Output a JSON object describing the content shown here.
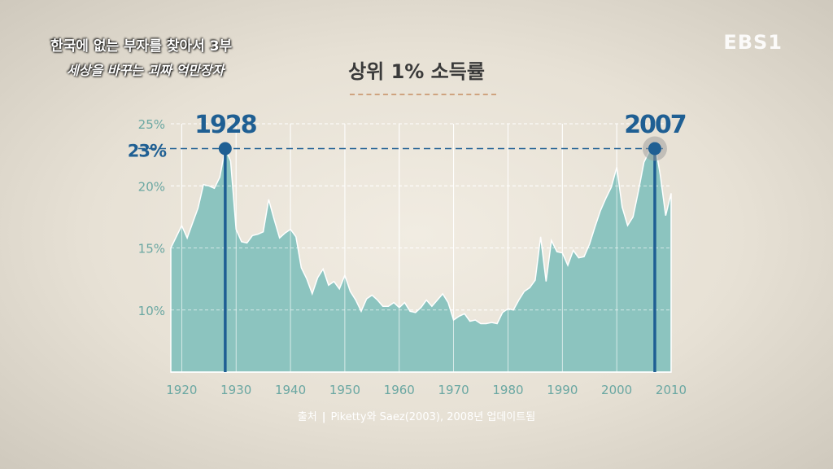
{
  "overlay": {
    "program_title": "한국에 없는 부자를 찾아서 3부",
    "episode_subtitle": "세상을 바꾸는 괴짜 억만장자",
    "channel_logo": "EBS1"
  },
  "chart_data": {
    "type": "area",
    "title": "상위 1% 소득률",
    "source_label": "출처",
    "source_text": "Piketty와 Saez(2003), 2008년 업데이트됨",
    "x_ticks": [
      1920,
      1930,
      1940,
      1950,
      1960,
      1970,
      1980,
      1990,
      2000,
      2010
    ],
    "y_ticks": [
      "10%",
      "15%",
      "20%",
      "25%"
    ],
    "y_tick_values": [
      10,
      15,
      20,
      25
    ],
    "xlim": [
      1918,
      2010
    ],
    "ylim": [
      5,
      25
    ],
    "grid": true,
    "fill_color": "#8cc4bf",
    "highlight_color": "#1f5f93",
    "reference_line": {
      "value": 23,
      "label": "23%"
    },
    "annotations": [
      {
        "x": 1928,
        "y": 23,
        "label": "1928"
      },
      {
        "x": 2007,
        "y": 23,
        "label": "2007"
      }
    ],
    "series": [
      {
        "x": [
          1918,
          1919,
          1920,
          1921,
          1922,
          1923,
          1924,
          1925,
          1926,
          1927,
          1928,
          1929,
          1930,
          1931,
          1932,
          1933,
          1934,
          1935,
          1936,
          1937,
          1938,
          1939,
          1940,
          1941,
          1942,
          1943,
          1944,
          1945,
          1946,
          1947,
          1948,
          1949,
          1950,
          1951,
          1952,
          1953,
          1954,
          1955,
          1956,
          1957,
          1958,
          1959,
          1960,
          1961,
          1962,
          1963,
          1964,
          1965,
          1966,
          1967,
          1968,
          1969,
          1970,
          1971,
          1972,
          1973,
          1974,
          1975,
          1976,
          1977,
          1978,
          1979,
          1980,
          1981,
          1982,
          1983,
          1984,
          1985,
          1986,
          1987,
          1988,
          1989,
          1990,
          1991,
          1992,
          1993,
          1994,
          1995,
          1996,
          1997,
          1998,
          1999,
          2000,
          2001,
          2002,
          2003,
          2004,
          2005,
          2006,
          2007,
          2008,
          2009,
          2010
        ],
        "y": [
          15.0,
          15.9,
          16.8,
          15.8,
          17.0,
          18.2,
          20.1,
          20.0,
          19.8,
          20.7,
          23.0,
          22.0,
          16.5,
          15.5,
          15.4,
          16.0,
          16.1,
          16.3,
          18.9,
          17.3,
          15.8,
          16.2,
          16.5,
          15.9,
          13.4,
          12.5,
          11.3,
          12.6,
          13.3,
          12.0,
          12.3,
          11.7,
          12.8,
          11.5,
          10.8,
          9.9,
          10.9,
          11.2,
          10.8,
          10.3,
          10.3,
          10.6,
          10.2,
          10.6,
          9.9,
          9.8,
          10.2,
          10.8,
          10.3,
          10.8,
          11.3,
          10.6,
          9.2,
          9.5,
          9.7,
          9.1,
          9.2,
          8.9,
          8.9,
          9.0,
          8.9,
          9.8,
          10.1,
          10.0,
          10.8,
          11.5,
          11.8,
          12.4,
          15.9,
          12.3,
          15.6,
          14.7,
          14.6,
          13.6,
          14.8,
          14.2,
          14.3,
          15.3,
          16.7,
          18.0,
          19.0,
          19.9,
          21.5,
          18.3,
          16.8,
          17.5,
          19.6,
          21.9,
          22.8,
          23.5,
          20.9,
          17.6,
          19.4
        ]
      }
    ]
  }
}
